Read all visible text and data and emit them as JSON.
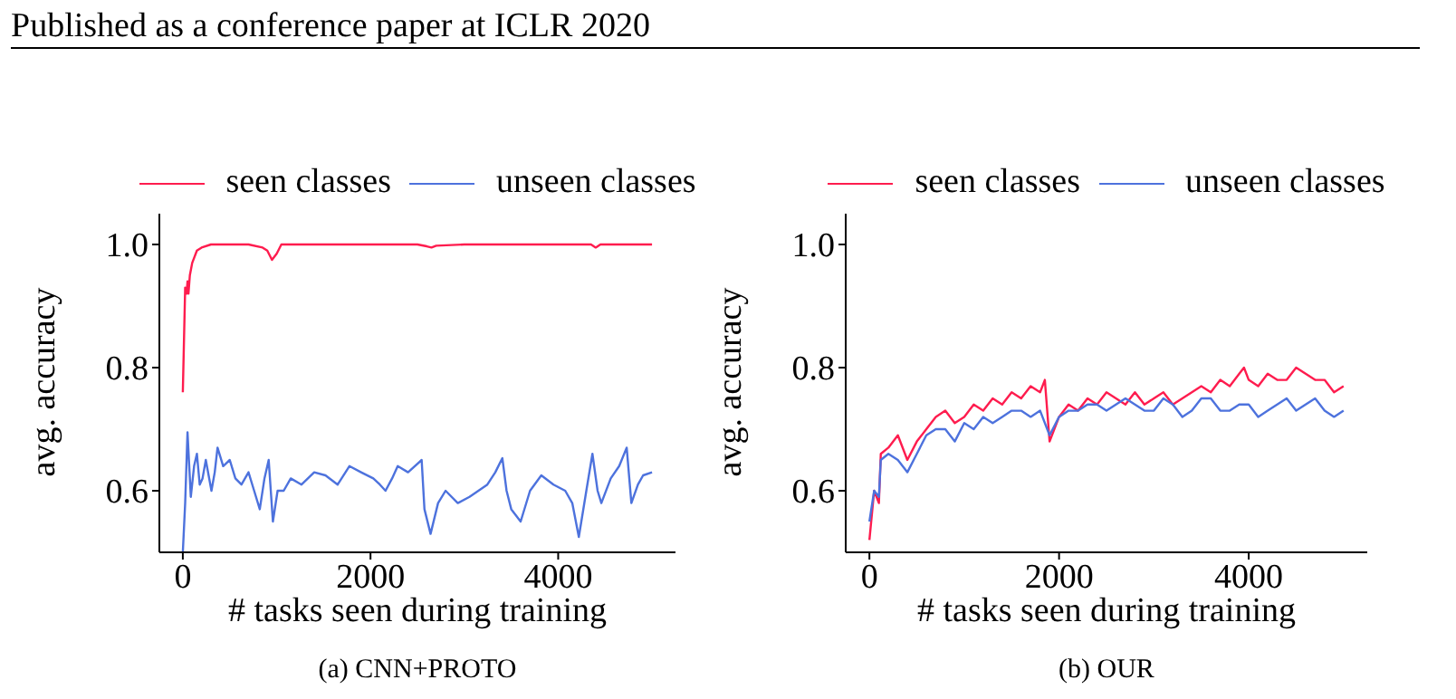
{
  "chart_data": [
    {
      "type": "line",
      "xlabel": "# tasks seen during training",
      "ylabel": "avg. accuracy",
      "legend": "top",
      "xlim": [
        -250,
        5250
      ],
      "ylim": [
        0.5,
        1.05
      ],
      "xticks": [
        0,
        2000,
        4000
      ],
      "yticks": [
        {
          "value": 0.6,
          "label": "0.6"
        },
        {
          "value": 0.8,
          "label": "0.8"
        },
        {
          "value": 1.0,
          "label": "1.0"
        }
      ],
      "annotations": [
        "Published as a conference paper at ICLR 2020",
        "(a) CNN+PROTO"
      ],
      "series": [
        {
          "name": "seen classes",
          "color": "#fe1c4e",
          "x": [
            0,
            25,
            40,
            50,
            60,
            75,
            100,
            150,
            200,
            300,
            500,
            700,
            850,
            900,
            950,
            1000,
            1050,
            1200,
            1500,
            2000,
            2500,
            2600,
            2650,
            2700,
            3000,
            3500,
            4000,
            4350,
            4400,
            4450,
            4700,
            5000
          ],
          "values": [
            0.76,
            0.93,
            0.92,
            0.94,
            0.92,
            0.95,
            0.97,
            0.99,
            0.995,
            1.0,
            1.0,
            1.0,
            0.995,
            0.99,
            0.975,
            0.985,
            1.0,
            1.0,
            1.0,
            1.0,
            1.0,
            0.997,
            0.995,
            0.998,
            1.0,
            1.0,
            1.0,
            1.0,
            0.995,
            1.0,
            1.0,
            1.0
          ]
        },
        {
          "name": "unseen classes",
          "color": "#4d72dd",
          "x": [
            0,
            25,
            50,
            85,
            120,
            150,
            180,
            210,
            245,
            305,
            340,
            370,
            430,
            500,
            560,
            625,
            700,
            760,
            820,
            870,
            915,
            960,
            1010,
            1075,
            1150,
            1265,
            1400,
            1520,
            1650,
            1775,
            1900,
            2030,
            2100,
            2160,
            2230,
            2290,
            2400,
            2545,
            2575,
            2640,
            2720,
            2800,
            2930,
            3055,
            3150,
            3245,
            3330,
            3405,
            3450,
            3500,
            3600,
            3700,
            3820,
            3950,
            4075,
            4150,
            4220,
            4300,
            4365,
            4420,
            4460,
            4560,
            4650,
            4730,
            4780,
            4850,
            4905,
            5000
          ],
          "values": [
            0.5,
            0.58,
            0.695,
            0.59,
            0.64,
            0.66,
            0.61,
            0.62,
            0.65,
            0.6,
            0.63,
            0.67,
            0.64,
            0.65,
            0.62,
            0.61,
            0.63,
            0.6,
            0.57,
            0.62,
            0.65,
            0.55,
            0.6,
            0.6,
            0.62,
            0.61,
            0.63,
            0.625,
            0.61,
            0.64,
            0.63,
            0.62,
            0.61,
            0.6,
            0.62,
            0.64,
            0.63,
            0.65,
            0.57,
            0.53,
            0.58,
            0.6,
            0.58,
            0.59,
            0.6,
            0.61,
            0.63,
            0.653,
            0.6,
            0.57,
            0.55,
            0.6,
            0.625,
            0.61,
            0.6,
            0.58,
            0.525,
            0.6,
            0.66,
            0.6,
            0.58,
            0.62,
            0.64,
            0.67,
            0.58,
            0.61,
            0.625,
            0.63
          ]
        }
      ]
    },
    {
      "type": "line",
      "xlabel": "# tasks seen during training",
      "ylabel": "avg. accuracy",
      "legend": "top",
      "xlim": [
        -250,
        5250
      ],
      "ylim": [
        0.5,
        1.05
      ],
      "xticks": [
        0,
        2000,
        4000
      ],
      "yticks": [
        {
          "value": 0.6,
          "label": "0.6"
        },
        {
          "value": 0.8,
          "label": "0.8"
        },
        {
          "value": 1.0,
          "label": "1.0"
        }
      ],
      "annotations": [
        "(b) OUR"
      ],
      "series": [
        {
          "name": "seen classes",
          "color": "#fe1c4e",
          "x": [
            0,
            50,
            100,
            120,
            200,
            300,
            400,
            500,
            600,
            700,
            800,
            900,
            1000,
            1100,
            1200,
            1300,
            1400,
            1500,
            1600,
            1700,
            1800,
            1850,
            1900,
            2000,
            2100,
            2200,
            2300,
            2400,
            2500,
            2600,
            2700,
            2800,
            2900,
            3000,
            3100,
            3200,
            3300,
            3400,
            3500,
            3600,
            3700,
            3800,
            3900,
            3950,
            4000,
            4100,
            4200,
            4300,
            4400,
            4500,
            4600,
            4700,
            4800,
            4900,
            5000
          ],
          "values": [
            0.52,
            0.6,
            0.58,
            0.66,
            0.67,
            0.69,
            0.65,
            0.68,
            0.7,
            0.72,
            0.73,
            0.71,
            0.72,
            0.74,
            0.73,
            0.75,
            0.74,
            0.76,
            0.75,
            0.77,
            0.76,
            0.78,
            0.68,
            0.72,
            0.74,
            0.73,
            0.75,
            0.74,
            0.76,
            0.75,
            0.74,
            0.76,
            0.74,
            0.75,
            0.76,
            0.74,
            0.75,
            0.76,
            0.77,
            0.76,
            0.78,
            0.77,
            0.79,
            0.8,
            0.78,
            0.77,
            0.79,
            0.78,
            0.78,
            0.8,
            0.79,
            0.78,
            0.78,
            0.76,
            0.77
          ]
        },
        {
          "name": "unseen classes",
          "color": "#4d72dd",
          "x": [
            0,
            50,
            100,
            120,
            200,
            300,
            400,
            500,
            600,
            700,
            800,
            900,
            1000,
            1100,
            1200,
            1300,
            1400,
            1500,
            1600,
            1700,
            1800,
            1900,
            2000,
            2100,
            2200,
            2300,
            2400,
            2500,
            2600,
            2700,
            2800,
            2900,
            3000,
            3100,
            3200,
            3300,
            3400,
            3500,
            3600,
            3700,
            3800,
            3900,
            4000,
            4100,
            4200,
            4300,
            4400,
            4500,
            4600,
            4700,
            4800,
            4900,
            5000
          ],
          "values": [
            0.55,
            0.6,
            0.59,
            0.65,
            0.66,
            0.65,
            0.63,
            0.66,
            0.69,
            0.7,
            0.7,
            0.68,
            0.71,
            0.7,
            0.72,
            0.71,
            0.72,
            0.73,
            0.73,
            0.72,
            0.73,
            0.69,
            0.72,
            0.73,
            0.73,
            0.74,
            0.74,
            0.73,
            0.74,
            0.75,
            0.74,
            0.73,
            0.73,
            0.75,
            0.74,
            0.72,
            0.73,
            0.75,
            0.75,
            0.73,
            0.73,
            0.74,
            0.74,
            0.72,
            0.73,
            0.74,
            0.75,
            0.73,
            0.74,
            0.75,
            0.73,
            0.72,
            0.73
          ]
        }
      ]
    }
  ]
}
